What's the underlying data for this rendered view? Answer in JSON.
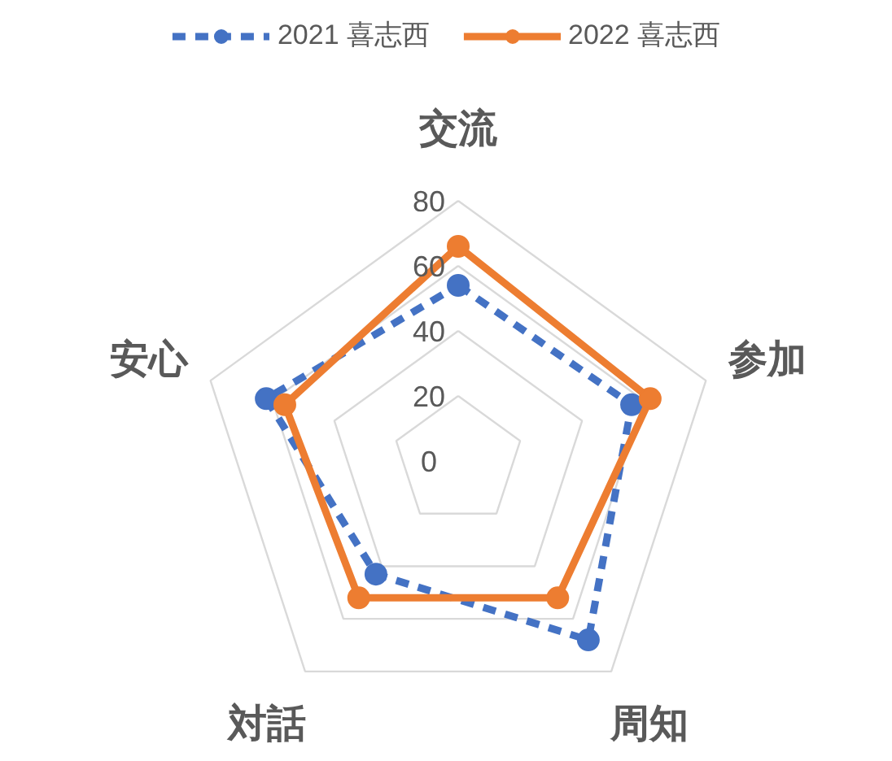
{
  "chart_data": {
    "type": "radar",
    "categories": [
      "交流",
      "参加",
      "周知",
      "対話",
      "安心"
    ],
    "ylim": [
      0,
      80
    ],
    "yticks": [
      0,
      20,
      40,
      60,
      80
    ],
    "grid": true,
    "legend": "top",
    "marker": "circle",
    "series": [
      {
        "name": "2021 喜志西",
        "color": "#4472c4",
        "line_style": "dashed",
        "values": [
          54,
          56,
          68,
          43,
          62
        ]
      },
      {
        "name": "2022 喜志西",
        "color": "#ed7d31",
        "line_style": "solid",
        "values": [
          66,
          62,
          52,
          52,
          56
        ]
      }
    ]
  }
}
